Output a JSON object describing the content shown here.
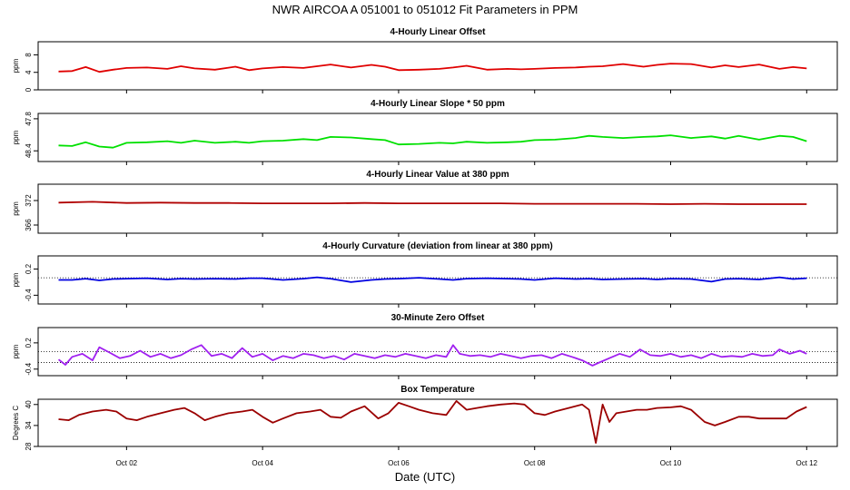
{
  "title": "NWR   AIRCOA A   051001 to 051012   Fit Parameters in PPM",
  "xlabel": "Date (UTC)",
  "x_axis": {
    "range_days": [
      30.7,
      42.45
    ],
    "ticks": [
      32,
      34,
      36,
      38,
      40,
      42
    ],
    "tick_labels": [
      "Oct 02",
      "Oct 04",
      "Oct 06",
      "Oct 08",
      "Oct 10",
      "Oct 12"
    ]
  },
  "chart_data": [
    {
      "type": "line",
      "title": "4-Hourly Linear Offset",
      "ylabel": "ppm",
      "ylim": [
        0,
        11
      ],
      "yticks": [
        0,
        4,
        8
      ],
      "ytick_labels": [
        "0",
        "4",
        "8"
      ],
      "color": "#e00000",
      "x": [
        31.0,
        31.2,
        31.4,
        31.6,
        31.8,
        32.0,
        32.3,
        32.6,
        32.8,
        33.0,
        33.3,
        33.6,
        33.8,
        34.0,
        34.3,
        34.6,
        34.8,
        35.0,
        35.3,
        35.6,
        35.8,
        36.0,
        36.3,
        36.6,
        36.8,
        37.0,
        37.3,
        37.6,
        37.8,
        38.0,
        38.3,
        38.6,
        38.8,
        39.0,
        39.3,
        39.6,
        39.8,
        40.0,
        40.3,
        40.6,
        40.8,
        41.0,
        41.3,
        41.6,
        41.8,
        42.0
      ],
      "values": [
        4.2,
        4.3,
        5.2,
        4.1,
        4.6,
        5.0,
        5.1,
        4.8,
        5.4,
        4.9,
        4.6,
        5.3,
        4.5,
        4.9,
        5.2,
        5.0,
        5.4,
        5.8,
        5.1,
        5.7,
        5.3,
        4.5,
        4.6,
        4.8,
        5.1,
        5.5,
        4.6,
        4.8,
        4.7,
        4.8,
        5.0,
        5.1,
        5.3,
        5.4,
        5.9,
        5.3,
        5.7,
        6.0,
        5.9,
        5.1,
        5.6,
        5.2,
        5.8,
        4.8,
        5.2,
        4.9
      ],
      "reference_lines": []
    },
    {
      "type": "line",
      "title": "4-Hourly Linear Slope * 50 ppm",
      "ylabel": "ppm",
      "ylim": [
        48.6,
        47.7
      ],
      "yticks": [
        48.4,
        47.8
      ],
      "ytick_labels": [
        "48.4",
        "47.8"
      ],
      "color": "#00e000",
      "x": [
        31.0,
        31.2,
        31.4,
        31.6,
        31.8,
        32.0,
        32.3,
        32.6,
        32.8,
        33.0,
        33.3,
        33.6,
        33.8,
        34.0,
        34.3,
        34.6,
        34.8,
        35.0,
        35.3,
        35.6,
        35.8,
        36.0,
        36.3,
        36.6,
        36.8,
        37.0,
        37.3,
        37.6,
        37.8,
        38.0,
        38.3,
        38.6,
        38.8,
        39.0,
        39.3,
        39.6,
        39.8,
        40.0,
        40.3,
        40.6,
        40.8,
        41.0,
        41.3,
        41.6,
        41.8,
        42.0
      ],
      "values": [
        48.3,
        48.31,
        48.24,
        48.32,
        48.34,
        48.25,
        48.24,
        48.22,
        48.25,
        48.21,
        48.25,
        48.23,
        48.25,
        48.22,
        48.21,
        48.18,
        48.2,
        48.14,
        48.15,
        48.18,
        48.2,
        48.28,
        48.27,
        48.25,
        48.26,
        48.23,
        48.25,
        48.24,
        48.23,
        48.2,
        48.19,
        48.16,
        48.12,
        48.14,
        48.16,
        48.14,
        48.13,
        48.11,
        48.16,
        48.13,
        48.17,
        48.12,
        48.19,
        48.12,
        48.14,
        48.22
      ],
      "reference_lines": []
    },
    {
      "type": "line",
      "title": "4-Hourly Linear Value at 380 ppm",
      "ylabel": "ppm",
      "ylim": [
        364,
        376
      ],
      "yticks": [
        372,
        366
      ],
      "ytick_labels": [
        "372",
        "366"
      ],
      "color": "#b00000",
      "x": [
        31.0,
        31.5,
        32.0,
        32.5,
        33.0,
        33.5,
        34.0,
        34.5,
        35.0,
        35.5,
        36.0,
        36.5,
        37.0,
        37.5,
        38.0,
        38.5,
        39.0,
        39.5,
        40.0,
        40.5,
        41.0,
        41.5,
        42.0
      ],
      "values": [
        371.5,
        371.7,
        371.4,
        371.5,
        371.4,
        371.4,
        371.3,
        371.3,
        371.3,
        371.4,
        371.3,
        371.3,
        371.3,
        371.3,
        371.2,
        371.2,
        371.2,
        371.2,
        371.1,
        371.2,
        371.1,
        371.1,
        371.1
      ],
      "reference_lines": []
    },
    {
      "type": "line",
      "title": "4-Hourly Curvature (deviation from linear at 380 ppm)",
      "ylabel": "ppm",
      "ylim": [
        -0.6,
        0.5
      ],
      "yticks": [
        0.2,
        -0.4
      ],
      "ytick_labels": [
        "0.2",
        "-0.4"
      ],
      "color": "#0000e0",
      "x": [
        31.0,
        31.2,
        31.4,
        31.6,
        31.8,
        32.0,
        32.3,
        32.6,
        32.8,
        33.0,
        33.3,
        33.6,
        33.8,
        34.0,
        34.3,
        34.6,
        34.8,
        35.0,
        35.3,
        35.6,
        35.8,
        36.0,
        36.3,
        36.6,
        36.8,
        37.0,
        37.3,
        37.6,
        37.8,
        38.0,
        38.3,
        38.6,
        38.8,
        39.0,
        39.3,
        39.6,
        39.8,
        40.0,
        40.3,
        40.6,
        40.8,
        41.0,
        41.3,
        41.6,
        41.8,
        42.0
      ],
      "values": [
        -0.05,
        -0.05,
        -0.02,
        -0.06,
        -0.03,
        -0.02,
        -0.01,
        -0.04,
        -0.02,
        -0.03,
        -0.02,
        -0.03,
        -0.01,
        -0.01,
        -0.05,
        -0.02,
        0.01,
        -0.02,
        -0.1,
        -0.05,
        -0.03,
        -0.02,
        0.0,
        -0.03,
        -0.05,
        -0.02,
        -0.01,
        -0.02,
        -0.03,
        -0.05,
        -0.01,
        -0.03,
        -0.02,
        -0.04,
        -0.03,
        -0.02,
        -0.04,
        -0.02,
        -0.03,
        -0.09,
        -0.03,
        -0.02,
        -0.04,
        0.01,
        -0.03,
        -0.01
      ],
      "reference_lines": [
        0
      ]
    },
    {
      "type": "line",
      "title": "30-Minute Zero Offset",
      "ylabel": "ppm",
      "ylim": [
        -0.55,
        0.55
      ],
      "yticks": [
        0.2,
        -0.4
      ],
      "ytick_labels": [
        "0.2",
        "-0.4"
      ],
      "color": "#a020f0",
      "x": [
        31.0,
        31.1,
        31.2,
        31.35,
        31.5,
        31.6,
        31.75,
        31.9,
        32.05,
        32.2,
        32.35,
        32.5,
        32.65,
        32.8,
        32.95,
        33.1,
        33.25,
        33.4,
        33.55,
        33.7,
        33.85,
        34.0,
        34.15,
        34.3,
        34.45,
        34.6,
        34.75,
        34.9,
        35.05,
        35.2,
        35.35,
        35.5,
        35.65,
        35.8,
        35.95,
        36.1,
        36.25,
        36.4,
        36.55,
        36.7,
        36.8,
        36.9,
        37.05,
        37.2,
        37.35,
        37.5,
        37.65,
        37.8,
        37.95,
        38.1,
        38.25,
        38.4,
        38.55,
        38.7,
        38.85,
        38.95,
        39.1,
        39.25,
        39.4,
        39.55,
        39.7,
        39.85,
        40.0,
        40.15,
        40.3,
        40.45,
        40.6,
        40.75,
        40.9,
        41.05,
        41.2,
        41.35,
        41.5,
        41.6,
        41.75,
        41.9,
        42.0
      ],
      "values": [
        -0.18,
        -0.3,
        -0.12,
        -0.05,
        -0.2,
        0.1,
        -0.02,
        -0.15,
        -0.1,
        0.02,
        -0.12,
        -0.05,
        -0.15,
        -0.08,
        0.05,
        0.15,
        -0.1,
        -0.05,
        -0.15,
        0.08,
        -0.12,
        -0.05,
        -0.2,
        -0.1,
        -0.15,
        -0.05,
        -0.08,
        -0.15,
        -0.1,
        -0.18,
        -0.05,
        -0.1,
        -0.15,
        -0.08,
        -0.12,
        -0.05,
        -0.1,
        -0.15,
        -0.08,
        -0.12,
        0.15,
        -0.05,
        -0.1,
        -0.08,
        -0.12,
        -0.05,
        -0.1,
        -0.15,
        -0.1,
        -0.08,
        -0.15,
        -0.05,
        -0.12,
        -0.2,
        -0.32,
        -0.25,
        -0.15,
        -0.05,
        -0.12,
        0.05,
        -0.08,
        -0.1,
        -0.05,
        -0.12,
        -0.08,
        -0.15,
        -0.05,
        -0.12,
        -0.1,
        -0.12,
        -0.05,
        -0.1,
        -0.08,
        0.05,
        -0.05,
        0.02,
        -0.05
      ],
      "reference_lines": [
        0,
        -0.25
      ]
    },
    {
      "type": "line",
      "title": "Box Temperature",
      "ylabel": "Degrees C",
      "ylim": [
        28,
        41.5
      ],
      "yticks": [
        28,
        34,
        40
      ],
      "ytick_labels": [
        "28",
        "34",
        "40"
      ],
      "color": "#9b0000",
      "x": [
        31.0,
        31.15,
        31.3,
        31.5,
        31.7,
        31.85,
        32.0,
        32.15,
        32.3,
        32.5,
        32.7,
        32.85,
        33.0,
        33.15,
        33.3,
        33.5,
        33.7,
        33.85,
        34.0,
        34.15,
        34.3,
        34.5,
        34.7,
        34.85,
        35.0,
        35.15,
        35.3,
        35.5,
        35.7,
        35.85,
        36.0,
        36.15,
        36.3,
        36.5,
        36.7,
        36.85,
        37.0,
        37.15,
        37.3,
        37.5,
        37.7,
        37.85,
        38.0,
        38.15,
        38.3,
        38.5,
        38.7,
        38.8,
        38.9,
        39.0,
        39.1,
        39.2,
        39.35,
        39.5,
        39.65,
        39.8,
        40.0,
        40.15,
        40.3,
        40.5,
        40.65,
        40.8,
        41.0,
        41.15,
        41.3,
        41.5,
        41.7,
        41.85,
        42.0
      ],
      "values": [
        35.8,
        35.5,
        37.0,
        38.0,
        38.5,
        38.0,
        36.0,
        35.5,
        36.5,
        37.5,
        38.5,
        39.0,
        37.5,
        35.5,
        36.5,
        37.5,
        38.0,
        38.5,
        36.5,
        34.8,
        36.0,
        37.5,
        38.0,
        38.5,
        36.5,
        36.2,
        38.0,
        39.5,
        36.0,
        37.5,
        40.5,
        39.5,
        38.5,
        37.5,
        37.0,
        41.0,
        38.5,
        39.0,
        39.5,
        40.0,
        40.3,
        40.0,
        37.5,
        37.0,
        38.0,
        39.0,
        40.0,
        38.5,
        29.0,
        40.0,
        35.0,
        37.5,
        38.0,
        38.5,
        38.5,
        39.0,
        39.2,
        39.5,
        38.5,
        35.0,
        34.0,
        35.0,
        36.5,
        36.5,
        36.0,
        36.0,
        36.0,
        38.0,
        39.3
      ],
      "reference_lines": []
    }
  ]
}
